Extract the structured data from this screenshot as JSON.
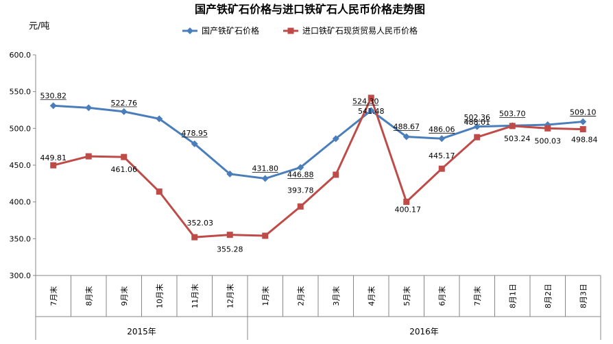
{
  "chart_data": {
    "type": "line",
    "title": "国产铁矿石价格与进口铁矿石人民币价格走势图",
    "ylabel": "元/吨",
    "ylim": [
      300,
      600
    ],
    "yticks": [
      "300.0",
      "350.0",
      "400.0",
      "450.0",
      "500.0",
      "550.0",
      "600.0"
    ],
    "grid": false,
    "legend_position": "top",
    "categories": [
      "7月末",
      "8月末",
      "9月末",
      "10月末",
      "11月末",
      "12月末",
      "1月末",
      "2月末",
      "3月末",
      "4月末",
      "5月末",
      "6月末",
      "7月末",
      "8月1日",
      "8月2日",
      "8月3日"
    ],
    "year_groups": [
      {
        "label": "2015年",
        "count": 6
      },
      {
        "label": "2016年",
        "count": 10
      }
    ],
    "series": [
      {
        "name": "国产铁矿石价格",
        "color": "#4a7ebb",
        "marker": "diamond",
        "values": [
          530.82,
          528,
          522.76,
          513,
          478.95,
          438,
          431.8,
          446.88,
          486,
          524.3,
          488.67,
          486.06,
          502.36,
          503.7,
          505,
          509.1
        ],
        "labels": [
          "530.82",
          "",
          "522.76",
          "",
          "478.95",
          "",
          "431.80",
          "446.88",
          "",
          "524.30",
          "488.67",
          "486.06",
          "502.36",
          "503.70",
          "",
          "509.10"
        ]
      },
      {
        "name": "进口铁矿石现货贸易人民币价格",
        "color": "#be4b48",
        "marker": "square",
        "values": [
          449.81,
          462,
          461.06,
          414,
          352.03,
          355.28,
          354,
          393.78,
          437,
          541.48,
          400.17,
          445.17,
          488.01,
          503.24,
          500.03,
          498.84
        ],
        "labels": [
          "449.81",
          "",
          "461.06",
          "",
          "352.03",
          "355.28",
          "",
          "393.78",
          "",
          "541.48",
          "400.17",
          "445.17",
          "488.01",
          "503.24",
          "500.03",
          "498.84"
        ]
      }
    ]
  }
}
